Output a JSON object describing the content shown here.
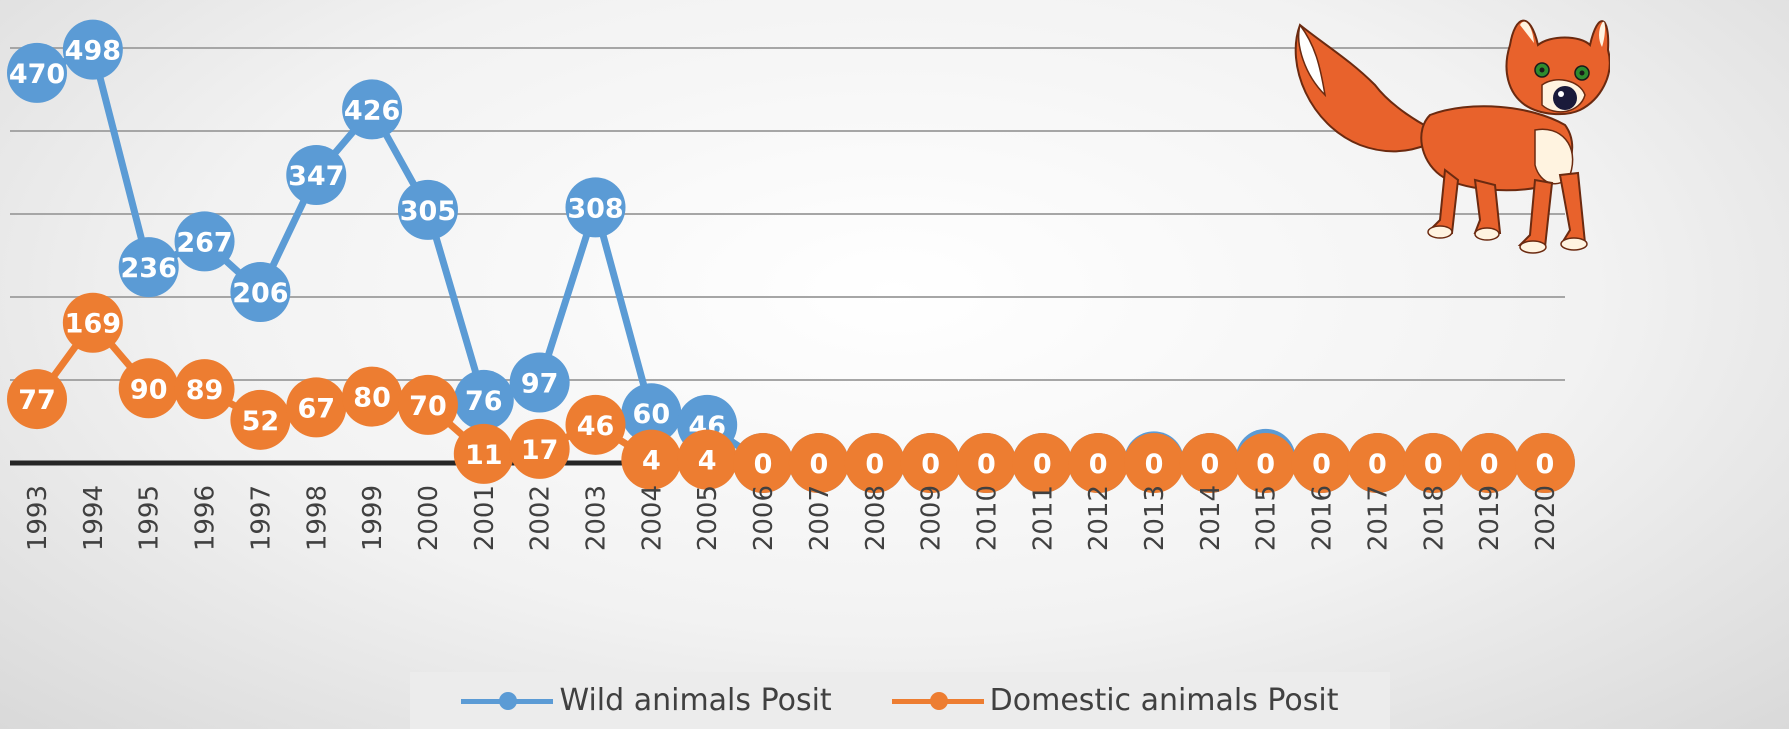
{
  "chart_data": {
    "type": "line",
    "categories": [
      "1993",
      "1994",
      "1995",
      "1996",
      "1997",
      "1998",
      "1999",
      "2000",
      "2001",
      "2002",
      "2003",
      "2004",
      "2005",
      "2006",
      "2007",
      "2008",
      "2009",
      "2010",
      "2011",
      "2012",
      "2013",
      "2014",
      "2015",
      "2016",
      "2017",
      "2018",
      "2019",
      "2020"
    ],
    "series": [
      {
        "name": "Wild animals Posit",
        "color": "#5b9bd5",
        "values": [
          470,
          498,
          236,
          267,
          206,
          347,
          426,
          305,
          76,
          97,
          308,
          60,
          46,
          0,
          0,
          0,
          0,
          0,
          0,
          0,
          2,
          0,
          5,
          0,
          0,
          0,
          0,
          0
        ]
      },
      {
        "name": "Domestic animals Posit",
        "color": "#ed7d31",
        "values": [
          77,
          169,
          90,
          89,
          52,
          67,
          80,
          70,
          11,
          17,
          46,
          4,
          4,
          0,
          0,
          0,
          0,
          0,
          0,
          0,
          0,
          0,
          0,
          0,
          0,
          0,
          0,
          0
        ]
      }
    ],
    "ylim": [
      0,
      500
    ],
    "grid": true,
    "legend_position": "bottom",
    "decoration_icon": "fox-illustration"
  }
}
